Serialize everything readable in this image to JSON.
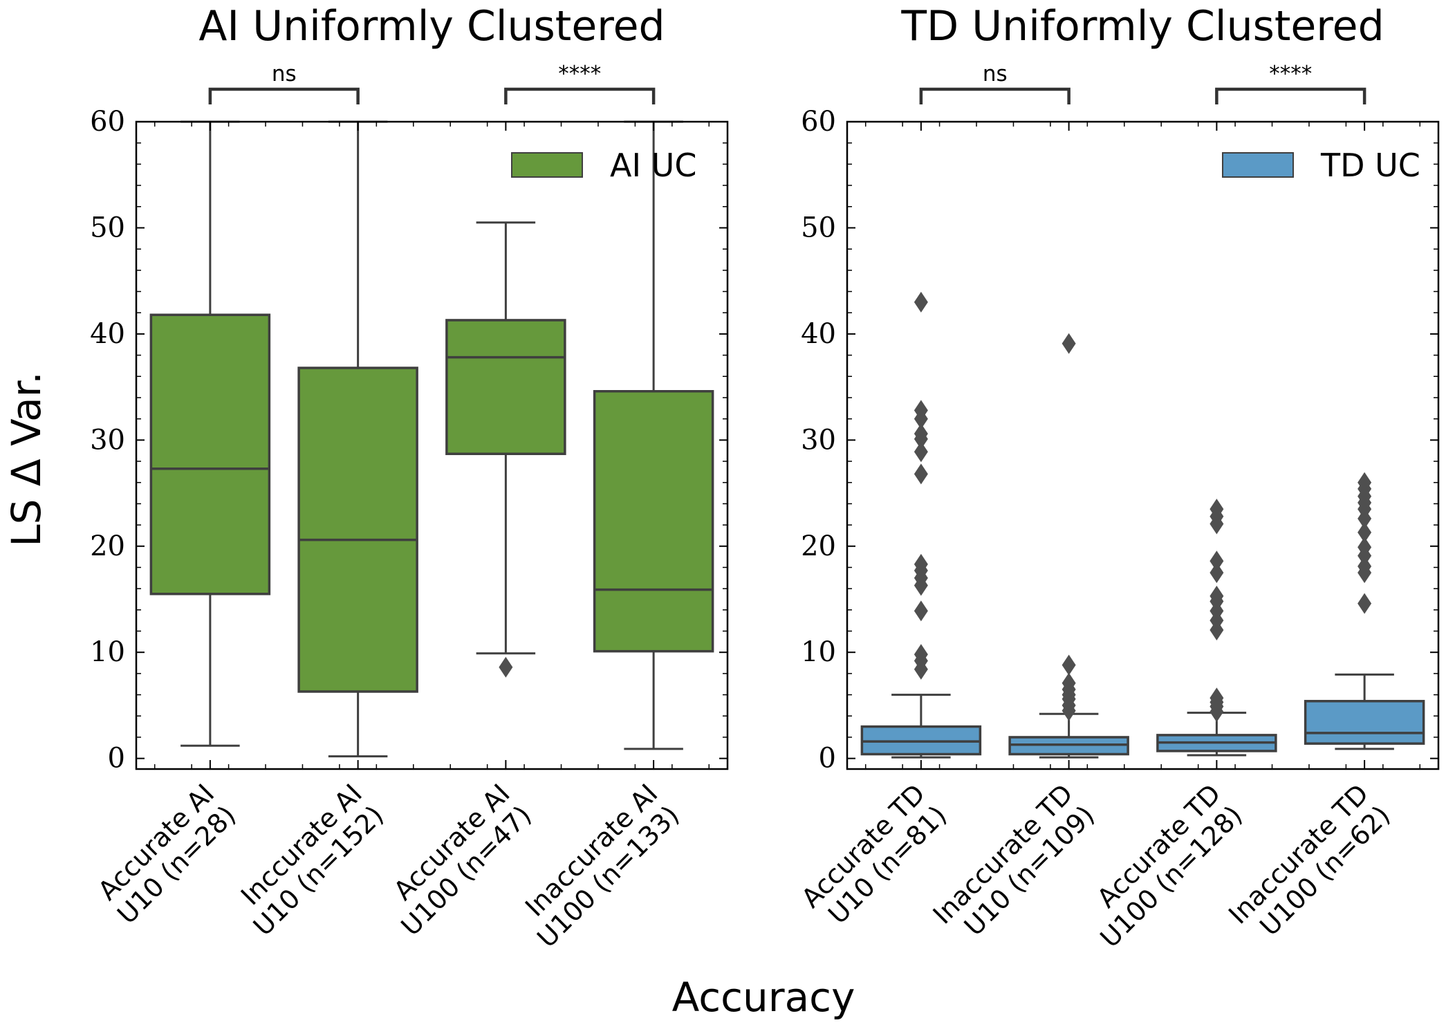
{
  "figure": {
    "ylabel": "LS Δ Var.",
    "xlabel": "Accuracy"
  },
  "colors": {
    "ai_box": "#66993c",
    "td_box": "#5b9ac6",
    "line": "#3f3f3f",
    "outlier": "#4f4f4f"
  },
  "chart_data": [
    {
      "type": "box",
      "title": "AI Uniformly Clustered",
      "legend": {
        "label": "AI UC",
        "position": "top-right"
      },
      "ylim": [
        -1,
        60
      ],
      "yticks": [
        0,
        10,
        20,
        30,
        40,
        50,
        60
      ],
      "categories": [
        [
          "Accurate AI",
          "U10 (n=28)"
        ],
        [
          "Inccurate AI",
          "U10 (n=152)"
        ],
        [
          "Accurate AI",
          "U100 (n=47)"
        ],
        [
          "Inaccurate AI",
          "U100 (n=133)"
        ]
      ],
      "boxes": [
        {
          "whislo": 1.2,
          "q1": 15.5,
          "med": 27.3,
          "q3": 41.8,
          "whishi": 60,
          "fliers": []
        },
        {
          "whislo": 0.2,
          "q1": 6.3,
          "med": 20.6,
          "q3": 36.8,
          "whishi": 60,
          "fliers": []
        },
        {
          "whislo": 9.9,
          "q1": 28.7,
          "med": 37.8,
          "q3": 41.3,
          "whishi": 50.5,
          "fliers": [
            8.6
          ]
        },
        {
          "whislo": 0.9,
          "q1": 10.1,
          "med": 15.9,
          "q3": 34.6,
          "whishi": 60,
          "fliers": []
        }
      ],
      "significance": [
        {
          "pair": [
            0,
            1
          ],
          "label": "ns"
        },
        {
          "pair": [
            2,
            3
          ],
          "label": "****"
        }
      ]
    },
    {
      "type": "box",
      "title": "TD Uniformly Clustered",
      "legend": {
        "label": "TD UC",
        "position": "top-right"
      },
      "ylim": [
        -1,
        60
      ],
      "yticks": [
        0,
        10,
        20,
        30,
        40,
        50,
        60
      ],
      "categories": [
        [
          "Accurate TD",
          "U10 (n=81)"
        ],
        [
          "Inaccurate TD",
          "U10 (n=109)"
        ],
        [
          "Accurate TD",
          "U100 (n=128)"
        ],
        [
          "Inaccurate TD",
          "U100 (n=62)"
        ]
      ],
      "boxes": [
        {
          "whislo": 0.1,
          "q1": 0.4,
          "med": 1.6,
          "q3": 3.0,
          "whishi": 6.0,
          "fliers": [
            8.4,
            9.2,
            9.8,
            13.9,
            16.3,
            17.0,
            17.7,
            18.3,
            26.8,
            28.9,
            30.1,
            30.6,
            32.0,
            32.8,
            43.0
          ]
        },
        {
          "whislo": 0.1,
          "q1": 0.4,
          "med": 1.3,
          "q3": 2.0,
          "whishi": 4.2,
          "fliers": [
            4.5,
            5.0,
            5.6,
            6.0,
            6.5,
            7.1,
            8.8,
            39.1
          ]
        },
        {
          "whislo": 0.3,
          "q1": 0.7,
          "med": 1.5,
          "q3": 2.2,
          "whishi": 4.3,
          "fliers": [
            4.4,
            4.9,
            5.3,
            5.7,
            12.1,
            13.0,
            13.9,
            14.8,
            15.3,
            17.5,
            18.6,
            22.1,
            22.8,
            23.5
          ]
        },
        {
          "whislo": 0.9,
          "q1": 1.4,
          "med": 2.4,
          "q3": 5.4,
          "whishi": 7.9,
          "fliers": [
            14.6,
            17.5,
            18.1,
            19.1,
            19.9,
            21.3,
            22.6,
            23.5,
            24.1,
            24.7,
            25.4,
            26.0
          ]
        }
      ],
      "significance": [
        {
          "pair": [
            0,
            1
          ],
          "label": "ns"
        },
        {
          "pair": [
            2,
            3
          ],
          "label": "****"
        }
      ]
    }
  ]
}
